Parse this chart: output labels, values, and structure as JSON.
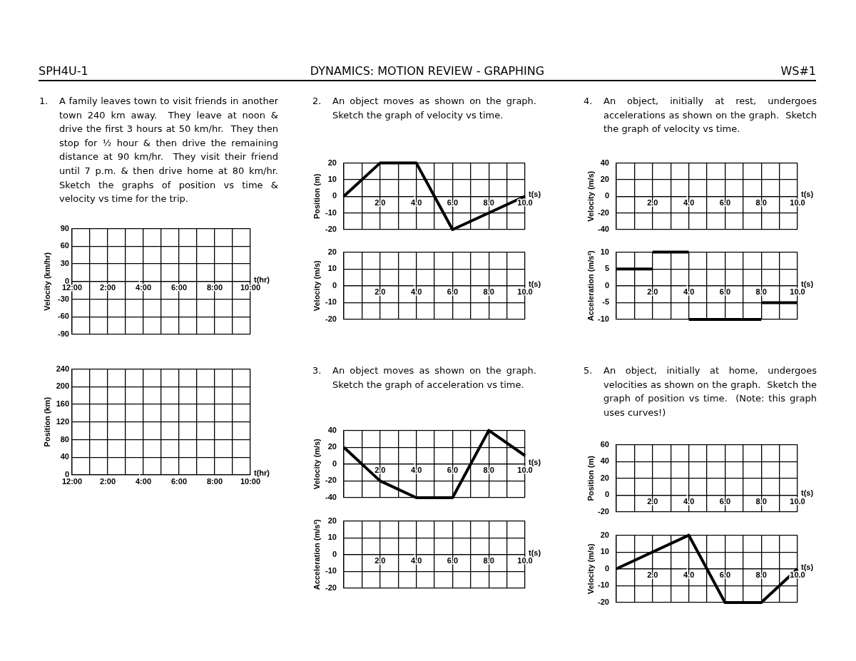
{
  "chart_data": [
    {
      "type": "other",
      "title": "DYNAMICS: MOTION REVIEW - GRAPHING",
      "annotations": [
        "SPH4U-1",
        "WS#1"
      ]
    },
    {
      "type": "line",
      "title": "1. A family leaves town to visit friends in another town 240 km away.  They leave at noon & drive the first 3 hours at 50 km/hr.  They then stop for ½ hour & then drive the remaining distance at 90 km/hr.  They visit their friend until 7 p.m. & then drive home at 80 km/hr. Sketch the graphs of position vs time & velocity vs time for the trip.",
      "xlabel": "t(hr)",
      "ylabel": "Velocity (km/hr)",
      "categories": [
        "12:00",
        null,
        "2:00",
        null,
        "4:00",
        null,
        "6:00",
        null,
        "8:00",
        null,
        "10:00"
      ],
      "ylim": [
        -90,
        90
      ],
      "yticks": [
        -90,
        -60,
        -30,
        0,
        30,
        60,
        90
      ],
      "grid": true
    },
    {
      "type": "line",
      "xlabel": "t(hr)",
      "ylabel": "Position (km)",
      "categories": [
        "12:00",
        null,
        "2:00",
        null,
        "4:00",
        null,
        "6:00",
        null,
        "8:00",
        null,
        "10:00"
      ],
      "ylim": [
        0,
        240
      ],
      "yticks": [
        0,
        40,
        80,
        120,
        160,
        200,
        240
      ],
      "grid": true
    },
    {
      "type": "line",
      "title": "2. An object moves as shown on the graph.  Sketch the graph of velocity vs time.",
      "xlabel": "t(s)",
      "ylabel": "Position (m)",
      "x": [
        0,
        2,
        4,
        6,
        10
      ],
      "values": [
        0,
        20,
        20,
        -20,
        0
      ],
      "color": "#000000",
      "xlim": [
        0,
        10
      ],
      "xticks": [
        {
          "value": 0,
          "label": null
        },
        {
          "value": 1,
          "label": null
        },
        {
          "value": 2,
          "label": "2.0"
        },
        {
          "value": 3,
          "label": null
        },
        {
          "value": 4,
          "label": "4.0"
        },
        {
          "value": 5,
          "label": null
        },
        {
          "value": 6,
          "label": "6.0"
        },
        {
          "value": 7,
          "label": null
        },
        {
          "value": 8,
          "label": "8.0"
        },
        {
          "value": 9,
          "label": null
        },
        {
          "value": 10,
          "label": "10.0"
        }
      ],
      "ylim": [
        -20,
        20
      ],
      "yticks": [
        -20,
        -10,
        0,
        10,
        20
      ],
      "grid": true
    },
    {
      "type": "line",
      "xlabel": "t(s)",
      "ylabel": "Velocity (m/s)",
      "xlim": [
        0,
        10
      ],
      "xticks": [
        {
          "value": 0,
          "label": null
        },
        {
          "value": 1,
          "label": null
        },
        {
          "value": 2,
          "label": "2.0"
        },
        {
          "value": 3,
          "label": null
        },
        {
          "value": 4,
          "label": "4.0"
        },
        {
          "value": 5,
          "label": null
        },
        {
          "value": 6,
          "label": "6.0"
        },
        {
          "value": 7,
          "label": null
        },
        {
          "value": 8,
          "label": "8.0"
        },
        {
          "value": 9,
          "label": null
        },
        {
          "value": 10,
          "label": "10.0"
        }
      ],
      "ylim": [
        -20,
        20
      ],
      "yticks": [
        -20,
        -10,
        0,
        10,
        20
      ],
      "grid": true
    },
    {
      "type": "line",
      "title": "3. An object moves as shown on the graph.  Sketch the graph of acceleration vs time.",
      "xlabel": "t(s)",
      "ylabel": "Velocity (m/s)",
      "x": [
        0,
        2,
        4,
        6,
        8,
        10
      ],
      "values": [
        20,
        -20,
        -40,
        -40,
        40,
        10
      ],
      "color": "#000000",
      "xlim": [
        0,
        10
      ],
      "xticks": [
        {
          "value": 0,
          "label": null
        },
        {
          "value": 1,
          "label": null
        },
        {
          "value": 2,
          "label": "2.0"
        },
        {
          "value": 3,
          "label": null
        },
        {
          "value": 4,
          "label": "4.0"
        },
        {
          "value": 5,
          "label": null
        },
        {
          "value": 6,
          "label": "6.0"
        },
        {
          "value": 7,
          "label": null
        },
        {
          "value": 8,
          "label": "8.0"
        },
        {
          "value": 9,
          "label": null
        },
        {
          "value": 10,
          "label": "10.0"
        }
      ],
      "ylim": [
        -40,
        40
      ],
      "yticks": [
        -40,
        -20,
        0,
        20,
        40
      ],
      "grid": true
    },
    {
      "type": "line",
      "xlabel": "t(s)",
      "ylabel": "Acceleration (m/s²)",
      "xlim": [
        0,
        10
      ],
      "xticks": [
        {
          "value": 0,
          "label": null
        },
        {
          "value": 1,
          "label": null
        },
        {
          "value": 2,
          "label": "2.0"
        },
        {
          "value": 3,
          "label": null
        },
        {
          "value": 4,
          "label": "4.0"
        },
        {
          "value": 5,
          "label": null
        },
        {
          "value": 6,
          "label": "6.0"
        },
        {
          "value": 7,
          "label": null
        },
        {
          "value": 8,
          "label": "8.0"
        },
        {
          "value": 9,
          "label": null
        },
        {
          "value": 10,
          "label": "10.0"
        }
      ],
      "ylim": [
        -20,
        20
      ],
      "yticks": [
        -20,
        -10,
        0,
        10,
        20
      ],
      "grid": true
    },
    {
      "type": "line",
      "title": "4. An object, initially at rest, undergoes accelerations as shown on the graph.  Sketch the graph of velocity vs time.",
      "xlabel": "t(s)",
      "ylabel": "Velocity (m/s)",
      "xlim": [
        0,
        10
      ],
      "xticks": [
        {
          "value": 0,
          "label": null
        },
        {
          "value": 1,
          "label": null
        },
        {
          "value": 2,
          "label": "2.0"
        },
        {
          "value": 3,
          "label": null
        },
        {
          "value": 4,
          "label": "4.0"
        },
        {
          "value": 5,
          "label": null
        },
        {
          "value": 6,
          "label": "6.0"
        },
        {
          "value": 7,
          "label": null
        },
        {
          "value": 8,
          "label": "8.0"
        },
        {
          "value": 9,
          "label": null
        },
        {
          "value": 10,
          "label": "10.0"
        }
      ],
      "ylim": [
        -40,
        40
      ],
      "yticks": [
        -40,
        -20,
        0,
        20,
        40
      ],
      "grid": true
    },
    {
      "type": "line",
      "xlabel": "t(s)",
      "ylabel": "Acceleration (m/s²)",
      "series": [
        {
          "x": [
            0,
            2
          ],
          "values": [
            5,
            5
          ],
          "color": "#000000"
        },
        {
          "x": [
            2,
            4
          ],
          "values": [
            10,
            10
          ],
          "color": "#000000"
        },
        {
          "x": [
            4,
            8
          ],
          "values": [
            -10,
            -10
          ],
          "color": "#000000"
        },
        {
          "x": [
            8,
            10
          ],
          "values": [
            -5,
            -5
          ],
          "color": "#000000"
        }
      ],
      "xlim": [
        0,
        10
      ],
      "xticks": [
        {
          "value": 0,
          "label": null
        },
        {
          "value": 1,
          "label": null
        },
        {
          "value": 2,
          "label": "2.0"
        },
        {
          "value": 3,
          "label": null
        },
        {
          "value": 4,
          "label": "4.0"
        },
        {
          "value": 5,
          "label": null
        },
        {
          "value": 6,
          "label": "6.0"
        },
        {
          "value": 7,
          "label": null
        },
        {
          "value": 8,
          "label": "8.0"
        },
        {
          "value": 9,
          "label": null
        },
        {
          "value": 10,
          "label": "10.0"
        }
      ],
      "ylim": [
        -10,
        10
      ],
      "yticks": [
        -10,
        -5,
        0,
        5,
        10
      ],
      "grid": true
    },
    {
      "type": "line",
      "title": "5. An object, initially at home, undergoes velocities as shown on the graph.  Sketch the graph of position vs time.  (Note: this graph uses curves!)",
      "xlabel": "t(s)",
      "ylabel": "Position (m)",
      "xlim": [
        0,
        10
      ],
      "xticks": [
        {
          "value": 0,
          "label": null
        },
        {
          "value": 1,
          "label": null
        },
        {
          "value": 2,
          "label": "2.0"
        },
        {
          "value": 3,
          "label": null
        },
        {
          "value": 4,
          "label": "4.0"
        },
        {
          "value": 5,
          "label": null
        },
        {
          "value": 6,
          "label": "6.0"
        },
        {
          "value": 7,
          "label": null
        },
        {
          "value": 8,
          "label": "8.0"
        },
        {
          "value": 9,
          "label": null
        },
        {
          "value": 10,
          "label": "10.0"
        }
      ],
      "ylim": [
        -20,
        60
      ],
      "yticks": [
        -20,
        0,
        20,
        40,
        60
      ],
      "grid": true
    },
    {
      "type": "line",
      "xlabel": "t(s)",
      "ylabel": "Velocity (m/s)",
      "x": [
        0,
        4,
        6,
        8,
        10
      ],
      "values": [
        0,
        20,
        -20,
        -20,
        0
      ],
      "color": "#000000",
      "xlim": [
        0,
        10
      ],
      "xticks": [
        {
          "value": 0,
          "label": null
        },
        {
          "value": 1,
          "label": null
        },
        {
          "value": 2,
          "label": "2.0"
        },
        {
          "value": 3,
          "label": null
        },
        {
          "value": 4,
          "label": "4.0"
        },
        {
          "value": 5,
          "label": null
        },
        {
          "value": 6,
          "label": "6.0"
        },
        {
          "value": 7,
          "label": null
        },
        {
          "value": 8,
          "label": "8.0"
        },
        {
          "value": 9,
          "label": null
        },
        {
          "value": 10,
          "label": "10.0"
        }
      ],
      "ylim": [
        -20,
        20
      ],
      "yticks": [
        -20,
        -10,
        0,
        10,
        20
      ],
      "grid": true
    }
  ]
}
